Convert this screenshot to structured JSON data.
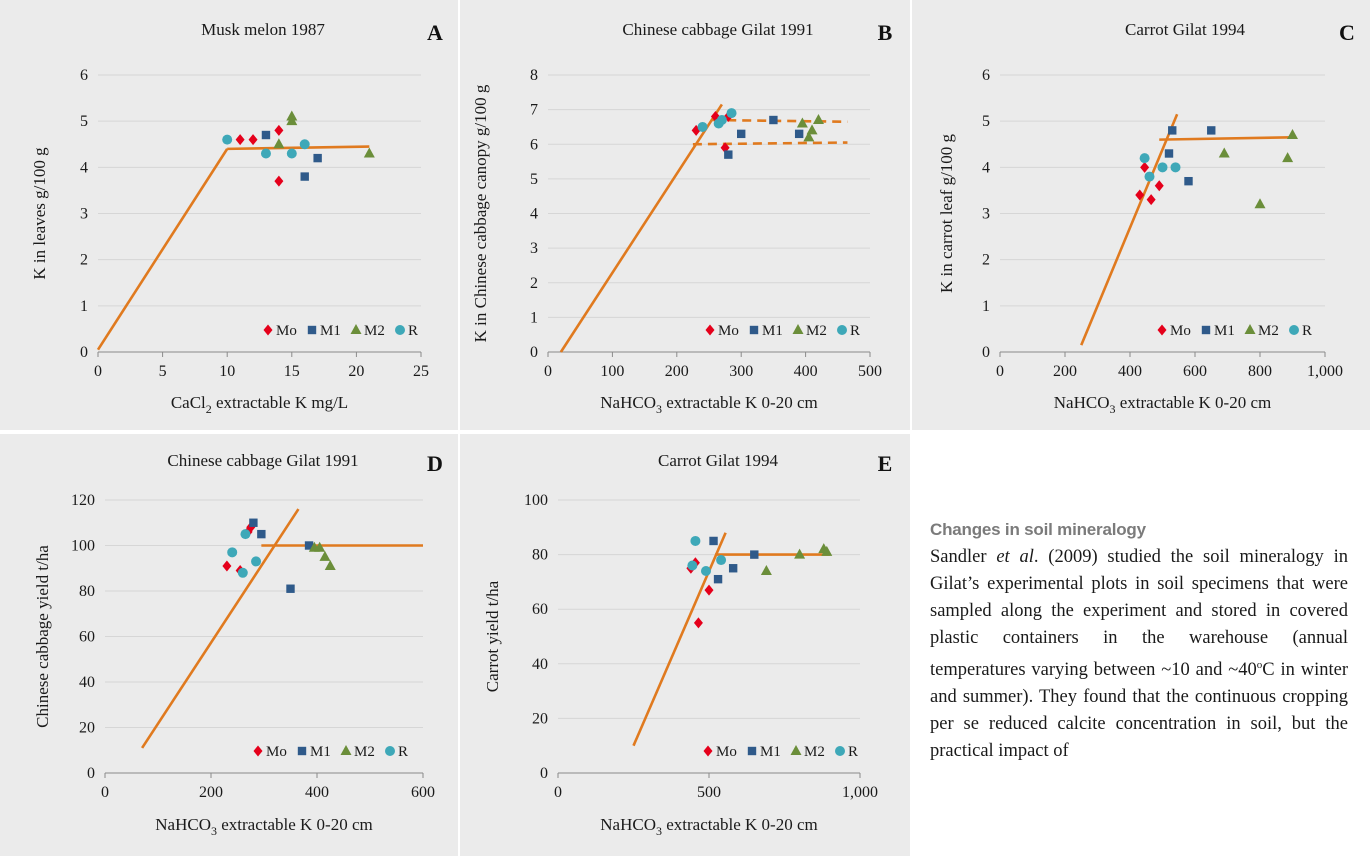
{
  "colors": {
    "Mo": "#e5001b",
    "M1": "#2f5a8a",
    "M2": "#6b8e3a",
    "R": "#3ea8b8",
    "fit_line": "#e07a1f",
    "grid": "#d6d6d6",
    "panel_bg": "#ebebeb"
  },
  "chart_data": [
    {
      "id": "A",
      "letter": "A",
      "type": "scatter",
      "title": "Musk melon 1987",
      "ylabel": "K in leaves  g/100 g",
      "xlabel_pre": "CaCl",
      "xlabel_sub": "2",
      "xlabel_post": " extractable K mg/L",
      "xlim": [
        0,
        25
      ],
      "ylim": [
        0,
        6
      ],
      "xticks": [
        0,
        5,
        10,
        15,
        20,
        25
      ],
      "yticks": [
        0,
        1,
        2,
        3,
        4,
        5,
        6
      ],
      "xtick_labels": [
        "0",
        "5",
        "10",
        "15",
        "20",
        "25"
      ],
      "ytick_labels": [
        "0",
        "1",
        "2",
        "3",
        "4",
        "5",
        "6"
      ],
      "legend_position": "bottom-right",
      "series": [
        {
          "name": "Mo",
          "marker": "diamond",
          "points": [
            [
              11,
              4.6
            ],
            [
              12,
              4.6
            ],
            [
              14,
              4.8
            ],
            [
              14,
              3.7
            ]
          ]
        },
        {
          "name": "M1",
          "marker": "square",
          "points": [
            [
              13,
              4.7
            ],
            [
              16,
              3.8
            ],
            [
              17,
              4.2
            ]
          ]
        },
        {
          "name": "M2",
          "marker": "triangle",
          "points": [
            [
              14,
              4.5
            ],
            [
              15,
              5.1
            ],
            [
              15,
              5.0
            ],
            [
              21,
              4.3
            ]
          ]
        },
        {
          "name": "R",
          "marker": "circle",
          "points": [
            [
              10,
              4.6
            ],
            [
              13,
              4.3
            ],
            [
              15,
              4.3
            ],
            [
              16,
              4.5
            ]
          ]
        }
      ],
      "lines": [
        {
          "points": [
            [
              0,
              0.05
            ],
            [
              10,
              4.4
            ]
          ],
          "style": "solid"
        },
        {
          "points": [
            [
              10,
              4.4
            ],
            [
              21,
              4.45
            ]
          ],
          "style": "solid"
        }
      ]
    },
    {
      "id": "B",
      "letter": "B",
      "type": "scatter",
      "title": "Chinese cabbage Gilat 1991",
      "ylabel": "K in Chinese cabbage canopy  g/100 g",
      "xlabel_pre": "NaHCO",
      "xlabel_sub": "3",
      "xlabel_post": " extractable K 0-20 cm",
      "xlim": [
        0,
        500
      ],
      "ylim": [
        0,
        8
      ],
      "xticks": [
        0,
        100,
        200,
        300,
        400,
        500
      ],
      "yticks": [
        0,
        1,
        2,
        3,
        4,
        5,
        6,
        7,
        8
      ],
      "xtick_labels": [
        "0",
        "100",
        "200",
        "300",
        "400",
        "500"
      ],
      "ytick_labels": [
        "0",
        "1",
        "2",
        "3",
        "4",
        "5",
        "6",
        "7",
        "8"
      ],
      "legend_position": "bottom-right",
      "series": [
        {
          "name": "Mo",
          "marker": "diamond",
          "points": [
            [
              230,
              6.4
            ],
            [
              260,
              6.8
            ],
            [
              275,
              5.9
            ],
            [
              280,
              6.8
            ]
          ]
        },
        {
          "name": "M1",
          "marker": "square",
          "points": [
            [
              280,
              5.7
            ],
            [
              300,
              6.3
            ],
            [
              350,
              6.7
            ],
            [
              390,
              6.3
            ]
          ]
        },
        {
          "name": "M2",
          "marker": "triangle",
          "points": [
            [
              395,
              6.6
            ],
            [
              405,
              6.2
            ],
            [
              410,
              6.4
            ],
            [
              420,
              6.7
            ]
          ]
        },
        {
          "name": "R",
          "marker": "circle",
          "points": [
            [
              240,
              6.5
            ],
            [
              265,
              6.6
            ],
            [
              270,
              6.7
            ],
            [
              285,
              6.9
            ]
          ]
        }
      ],
      "lines": [
        {
          "points": [
            [
              20,
              0
            ],
            [
              270,
              7.15
            ]
          ],
          "style": "solid"
        },
        {
          "points": [
            [
              255,
              6.7
            ],
            [
              465,
              6.65
            ]
          ],
          "style": "dashed"
        },
        {
          "points": [
            [
              225,
              6.0
            ],
            [
              465,
              6.05
            ]
          ],
          "style": "dashed"
        }
      ]
    },
    {
      "id": "C",
      "letter": "C",
      "type": "scatter",
      "title": "Carrot Gilat 1994",
      "ylabel": "K in carrot leaf  g/100 g",
      "xlabel_pre": "NaHCO",
      "xlabel_sub": "3",
      "xlabel_post": " extractable K 0-20 cm",
      "xlim": [
        0,
        1000
      ],
      "ylim": [
        0,
        6
      ],
      "xticks": [
        0,
        200,
        400,
        600,
        800,
        1000
      ],
      "yticks": [
        0,
        1,
        2,
        3,
        4,
        5,
        6
      ],
      "xtick_labels": [
        "0",
        "200",
        "400",
        "600",
        "800",
        "1,000"
      ],
      "ytick_labels": [
        "0",
        "1",
        "2",
        "3",
        "4",
        "5",
        "6"
      ],
      "legend_position": "bottom-right",
      "series": [
        {
          "name": "Mo",
          "marker": "diamond",
          "points": [
            [
              430,
              3.4
            ],
            [
              445,
              4.0
            ],
            [
              465,
              3.3
            ],
            [
              490,
              3.6
            ]
          ]
        },
        {
          "name": "M1",
          "marker": "square",
          "points": [
            [
              520,
              4.3
            ],
            [
              530,
              4.8
            ],
            [
              580,
              3.7
            ],
            [
              650,
              4.8
            ]
          ]
        },
        {
          "name": "M2",
          "marker": "triangle",
          "points": [
            [
              690,
              4.3
            ],
            [
              800,
              3.2
            ],
            [
              885,
              4.2
            ],
            [
              900,
              4.7
            ]
          ]
        },
        {
          "name": "R",
          "marker": "circle",
          "points": [
            [
              445,
              4.2
            ],
            [
              460,
              3.8
            ],
            [
              500,
              4.0
            ],
            [
              540,
              4.0
            ]
          ]
        }
      ],
      "lines": [
        {
          "points": [
            [
              250,
              0.15
            ],
            [
              545,
              5.15
            ]
          ],
          "style": "solid"
        },
        {
          "points": [
            [
              490,
              4.6
            ],
            [
              900,
              4.65
            ]
          ],
          "style": "solid"
        }
      ]
    },
    {
      "id": "D",
      "letter": "D",
      "type": "scatter",
      "title": "Chinese cabbage Gilat 1991",
      "ylabel": "Chinese cabbage yield t/ha",
      "xlabel_pre": "NaHCO",
      "xlabel_sub": "3",
      "xlabel_post": " extractable K 0-20 cm",
      "xlim": [
        0,
        600
      ],
      "ylim": [
        0,
        120
      ],
      "xticks": [
        0,
        200,
        400,
        600
      ],
      "yticks": [
        0,
        20,
        40,
        60,
        80,
        100,
        120
      ],
      "xtick_labels": [
        "0",
        "200",
        "400",
        "600"
      ],
      "ytick_labels": [
        "0",
        "20",
        "40",
        "60",
        "80",
        "100",
        "120"
      ],
      "legend_position": "bottom-right",
      "series": [
        {
          "name": "Mo",
          "marker": "diamond",
          "points": [
            [
              230,
              91
            ],
            [
              255,
              89
            ],
            [
              270,
              106
            ],
            [
              275,
              108
            ]
          ]
        },
        {
          "name": "M1",
          "marker": "square",
          "points": [
            [
              280,
              110
            ],
            [
              295,
              105
            ],
            [
              350,
              81
            ],
            [
              385,
              100
            ]
          ]
        },
        {
          "name": "M2",
          "marker": "triangle",
          "points": [
            [
              395,
              99
            ],
            [
              405,
              99
            ],
            [
              415,
              95
            ],
            [
              425,
              91
            ]
          ]
        },
        {
          "name": "R",
          "marker": "circle",
          "points": [
            [
              240,
              97
            ],
            [
              260,
              88
            ],
            [
              265,
              105
            ],
            [
              285,
              93
            ]
          ]
        }
      ],
      "lines": [
        {
          "points": [
            [
              70,
              11
            ],
            [
              365,
              116
            ]
          ],
          "style": "solid"
        },
        {
          "points": [
            [
              295,
              100
            ],
            [
              600,
              100
            ]
          ],
          "style": "solid"
        }
      ]
    },
    {
      "id": "E",
      "letter": "E",
      "type": "scatter",
      "title": "Carrot Gilat 1994",
      "ylabel": "Carrot yield t/ha",
      "xlabel_pre": "NaHCO",
      "xlabel_sub": "3",
      "xlabel_post": " extractable K 0-20 cm",
      "xlim": [
        0,
        1000
      ],
      "ylim": [
        0,
        100
      ],
      "xticks": [
        0,
        500,
        1000
      ],
      "yticks": [
        0,
        20,
        40,
        60,
        80,
        100
      ],
      "xtick_labels": [
        "0",
        "500",
        "1,000"
      ],
      "ytick_labels": [
        "0",
        "20",
        "40",
        "60",
        "80",
        "100"
      ],
      "legend_position": "bottom-right",
      "series": [
        {
          "name": "Mo",
          "marker": "diamond",
          "points": [
            [
              440,
              75
            ],
            [
              455,
              77
            ],
            [
              465,
              55
            ],
            [
              500,
              67
            ]
          ]
        },
        {
          "name": "M1",
          "marker": "square",
          "points": [
            [
              515,
              85
            ],
            [
              530,
              71
            ],
            [
              580,
              75
            ],
            [
              650,
              80
            ]
          ]
        },
        {
          "name": "M2",
          "marker": "triangle",
          "points": [
            [
              690,
              74
            ],
            [
              800,
              80
            ],
            [
              880,
              82
            ],
            [
              890,
              81
            ]
          ]
        },
        {
          "name": "R",
          "marker": "circle",
          "points": [
            [
              445,
              76
            ],
            [
              455,
              85
            ],
            [
              490,
              74
            ],
            [
              540,
              78
            ]
          ]
        }
      ],
      "lines": [
        {
          "points": [
            [
              250,
              10
            ],
            [
              555,
              88
            ]
          ],
          "style": "solid"
        },
        {
          "points": [
            [
              520,
              80
            ],
            [
              900,
              80
            ]
          ],
          "style": "solid"
        }
      ]
    }
  ],
  "side_text": {
    "heading": "Changes in soil mineralogy",
    "p1": "Sandler ",
    "p1_em": "et al",
    "p2": ". (2009) studied the soil mineralogy in Gilat’s experimental plots in soil specimens that were sampled along the experiment and stored in covered plastic containers in the warehouse (annual temperatures varying between ~10 and ~40",
    "p2_sup": "o",
    "p3": "C in winter and summer). They found that the continuous cropping per se reduced calcite concentration in soil, but the practical impact of"
  }
}
